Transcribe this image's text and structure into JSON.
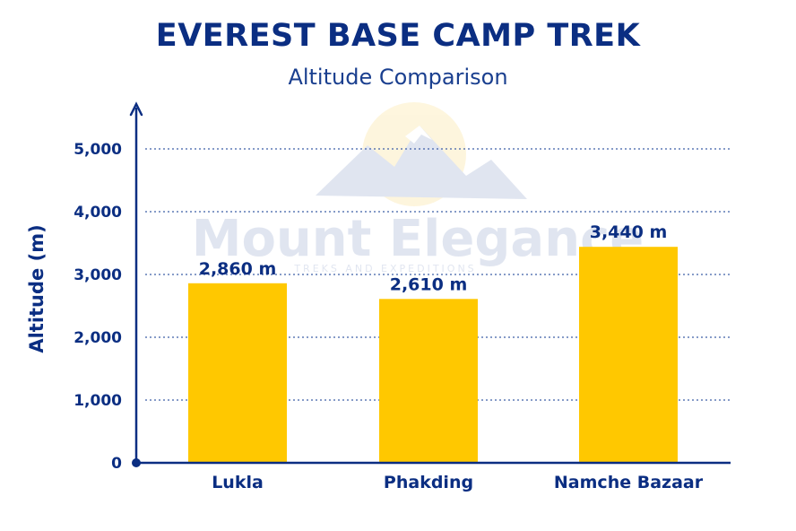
{
  "watermark": {
    "brand": "Mount Elegance",
    "tagline": "TREKS AND EXPEDITIONS"
  },
  "chart_data": {
    "type": "bar",
    "title": "EVEREST BASE CAMP TREK",
    "subtitle": "Altitude Comparison",
    "xlabel": "",
    "ylabel": "Altitude (m)",
    "categories": [
      "Lukla",
      "Phakding",
      "Namche Bazaar"
    ],
    "values": [
      2860,
      2610,
      3440
    ],
    "value_labels": [
      "2,860 m",
      "2,610 m",
      "3,440 m"
    ],
    "yticks": [
      0,
      1000,
      2000,
      3000,
      4000,
      5000
    ],
    "ytick_labels": [
      "0",
      "1,000",
      "2,000",
      "3,000",
      "4,000",
      "5,000"
    ],
    "ylim": [
      0,
      5000
    ],
    "grid": true,
    "legend": "none",
    "colors": {
      "bar": "#ffc800",
      "axis": "#0b2e82",
      "grid": "#3f5fa8",
      "text": "#0b2e82"
    }
  }
}
